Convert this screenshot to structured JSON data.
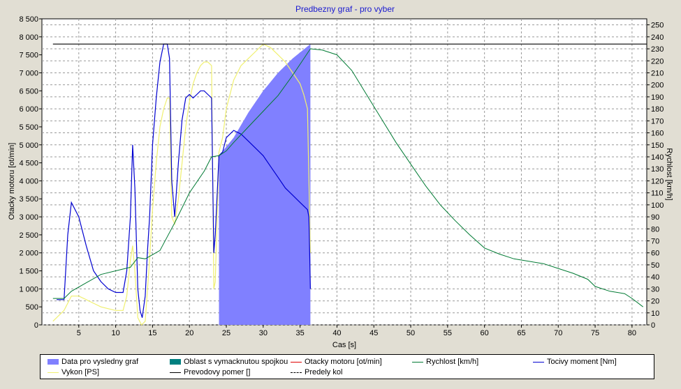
{
  "chart_data": {
    "type": "line",
    "title": "Predbezny graf - pro vyber",
    "xlabel": "Cas [s]",
    "ylabel": "Otacky motoru [ot/min]",
    "y2label": "Rychlost [km/h]",
    "xlim": [
      0,
      82
    ],
    "ylim": [
      0,
      8500
    ],
    "y2lim": [
      0,
      255
    ],
    "x_ticks": [
      "5",
      "10",
      "15",
      "20",
      "25",
      "30",
      "35",
      "40",
      "45",
      "50",
      "55",
      "60",
      "65",
      "70",
      "75",
      "80"
    ],
    "y_ticks": [
      "0",
      "500",
      "1 000",
      "1 500",
      "2 000",
      "2 500",
      "3 000",
      "3 500",
      "4 000",
      "4 500",
      "5 000",
      "5 500",
      "6 000",
      "6 500",
      "7 000",
      "7 500",
      "8 000",
      "8 500"
    ],
    "y2_ticks": [
      "0",
      "10",
      "20",
      "30",
      "40",
      "50",
      "60",
      "70",
      "80",
      "90",
      "100",
      "110",
      "120",
      "130",
      "140",
      "150",
      "160",
      "170",
      "180",
      "190",
      "200",
      "210",
      "220",
      "230",
      "240",
      "250"
    ],
    "grid": true,
    "legend_position": "bottom",
    "legend": [
      "Data pro vysledny graf",
      "Oblast s vymacknutou spojkou",
      "Otacky motoru [ot/min]",
      "Rychlost [km/h]",
      "Tocivy moment [Nm]",
      "Vykon [PS]",
      "Prevodovy pomer []",
      "Predely kol"
    ],
    "colors": {
      "area": "#8080ff",
      "clutch": "#008080",
      "rpm": "#e00000",
      "speed": "#007a33",
      "torque": "#0000d0",
      "power": "#f0f070",
      "ratio": "#000000",
      "divider": "#000000"
    },
    "series": [
      {
        "name": "Data pro vysledny graf",
        "axis": "left",
        "x": [
          24.0,
          24.0,
          26,
          28,
          30,
          32,
          34,
          36.4,
          36.4
        ],
        "y": [
          0,
          4700,
          5200,
          5900,
          6500,
          7000,
          7400,
          7800,
          0
        ]
      },
      {
        "name": "Rychlost [km/h]",
        "axis": "right",
        "x": [
          1.5,
          3,
          4,
          6,
          8,
          10,
          12,
          13,
          14,
          16,
          18,
          20,
          22,
          23,
          24,
          25,
          26,
          28,
          30,
          32,
          34,
          36.4,
          38,
          40,
          42,
          44,
          46,
          48,
          50,
          52,
          54,
          56,
          58,
          60,
          62,
          64,
          66,
          68,
          70,
          72,
          74,
          75,
          77,
          79,
          80,
          81.5
        ],
        "y": [
          22,
          22,
          28,
          35,
          42,
          45,
          48,
          56,
          55,
          62,
          85,
          110,
          128,
          140,
          141,
          145,
          152,
          165,
          178,
          191,
          208,
          230,
          229,
          225,
          212,
          192,
          172,
          152,
          134,
          116,
          100,
          87,
          75,
          64,
          59,
          55,
          53,
          51,
          47,
          43,
          38,
          32,
          28,
          26,
          22,
          15
        ]
      },
      {
        "name": "Tocivy moment [Nm]",
        "axis": "left",
        "x": [
          2,
          3,
          3.5,
          4,
          5,
          6,
          7,
          8,
          9,
          10,
          11,
          11.5,
          12,
          12.3,
          12.6,
          13,
          13.3,
          13.6,
          14,
          14.3,
          14.6,
          15,
          15.5,
          16,
          16.5,
          17,
          17.3,
          17.6,
          18,
          18.5,
          19,
          19.5,
          20,
          20.5,
          21,
          21.5,
          22,
          22.5,
          23,
          23.3,
          23.5,
          24,
          24.5,
          25,
          26,
          27,
          28,
          29,
          30,
          31,
          32,
          33,
          34,
          35,
          36,
          36.2,
          36.4
        ],
        "y": [
          700,
          700,
          2500,
          3400,
          3000,
          2200,
          1500,
          1200,
          1000,
          900,
          900,
          1500,
          3000,
          5000,
          3800,
          1000,
          400,
          200,
          800,
          2000,
          3000,
          5000,
          6300,
          7300,
          7800,
          7800,
          7400,
          4000,
          3000,
          4500,
          5700,
          6300,
          6400,
          6300,
          6400,
          6500,
          6500,
          6400,
          6300,
          2000,
          2500,
          4700,
          4800,
          5200,
          5400,
          5300,
          5100,
          4900,
          4700,
          4400,
          4100,
          3800,
          3600,
          3400,
          3200,
          3000,
          1000
        ]
      },
      {
        "name": "Vykon [PS]",
        "axis": "left",
        "x": [
          1.5,
          3,
          4,
          5,
          6,
          7,
          8,
          9,
          10,
          11,
          11.5,
          12,
          12.3,
          12.6,
          13,
          13.5,
          14,
          14.5,
          15,
          15.5,
          16,
          16.5,
          17,
          17.3,
          17.6,
          18,
          18.5,
          19,
          19.5,
          20,
          20.5,
          21,
          21.5,
          22,
          22.5,
          23,
          23.3,
          23.5,
          24,
          24.5,
          25,
          26,
          27,
          28,
          29,
          30,
          31,
          32,
          33,
          34,
          35,
          35.5,
          36,
          36.2,
          36.4
        ],
        "y": [
          100,
          400,
          800,
          800,
          700,
          600,
          500,
          450,
          400,
          400,
          800,
          1800,
          2200,
          1500,
          200,
          0,
          100,
          1500,
          3200,
          4500,
          5500,
          6000,
          6300,
          6300,
          3000,
          2800,
          3500,
          4500,
          5500,
          6200,
          6700,
          7000,
          7200,
          7300,
          7300,
          7200,
          1000,
          1200,
          4800,
          5200,
          6000,
          6800,
          7200,
          7400,
          7600,
          7800,
          7700,
          7500,
          7300,
          7000,
          6700,
          6400,
          6000,
          4000,
          2000
        ]
      },
      {
        "name": "Prevodovy pomer []",
        "axis": "left",
        "x": [
          1.5,
          82
        ],
        "y": [
          7800,
          7800
        ]
      }
    ]
  }
}
